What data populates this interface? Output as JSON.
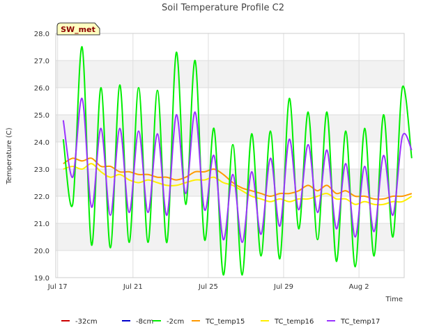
{
  "chart_data": {
    "type": "line",
    "title": "Soil Temperature Profile C2",
    "xlabel": "Time",
    "ylabel": "Temperature (C)",
    "station_label": "SW_met",
    "ylim": [
      19.0,
      28.0
    ],
    "yticks": [
      "19.0",
      "20.0",
      "21.0",
      "22.0",
      "23.0",
      "24.0",
      "25.0",
      "26.0",
      "27.0",
      "28.0"
    ],
    "xlim": [
      "Jul 17",
      "Aug 4"
    ],
    "xticks": [
      {
        "label": "Jul 17",
        "day": 0
      },
      {
        "label": "Jul 21",
        "day": 4
      },
      {
        "label": "Jul 25",
        "day": 8
      },
      {
        "label": "Jul 29",
        "day": 12
      },
      {
        "label": "Aug 2",
        "day": 16
      }
    ],
    "grid": true,
    "legend_position": "bottom",
    "series": [
      {
        "name": "-32cm",
        "color": "#cc0000",
        "values": []
      },
      {
        "name": "-8cm",
        "color": "#0000cc",
        "values": []
      },
      {
        "name": "-2cm",
        "color": "#00ee00",
        "day_start": 0.3,
        "day_step": 0.5,
        "values": [
          24.1,
          21.7,
          27.5,
          20.2,
          26.0,
          20.1,
          26.1,
          20.3,
          26.0,
          20.3,
          25.9,
          20.3,
          27.3,
          21.7,
          27.0,
          20.4,
          24.5,
          19.1,
          23.9,
          19.1,
          24.3,
          19.8,
          24.4,
          19.7,
          25.6,
          20.8,
          25.1,
          20.4,
          25.1,
          19.6,
          24.4,
          19.4,
          24.5,
          19.8,
          25.0,
          20.5,
          26.0,
          23.4
        ]
      },
      {
        "name": "TC_temp15",
        "color": "#ff9900",
        "day_start": 0.3,
        "day_step": 0.5,
        "values": [
          23.2,
          23.4,
          23.3,
          23.4,
          23.1,
          23.1,
          22.9,
          22.9,
          22.8,
          22.8,
          22.7,
          22.7,
          22.6,
          22.7,
          22.9,
          22.9,
          23.0,
          22.8,
          22.5,
          22.3,
          22.2,
          22.1,
          22.0,
          22.1,
          22.1,
          22.2,
          22.4,
          22.2,
          22.4,
          22.1,
          22.2,
          22.0,
          22.0,
          21.9,
          21.9,
          22.0,
          22.0,
          22.1
        ]
      },
      {
        "name": "TC_temp16",
        "color": "#ffee00",
        "day_start": 0.3,
        "day_step": 0.5,
        "values": [
          23.0,
          23.1,
          23.0,
          23.2,
          22.9,
          22.7,
          22.8,
          22.6,
          22.5,
          22.6,
          22.5,
          22.4,
          22.4,
          22.5,
          22.6,
          22.6,
          22.7,
          22.5,
          22.4,
          22.2,
          22.0,
          21.9,
          21.8,
          21.9,
          21.8,
          21.9,
          21.9,
          22.0,
          22.1,
          21.9,
          21.9,
          21.7,
          21.8,
          21.7,
          21.7,
          21.8,
          21.8,
          22.0
        ]
      },
      {
        "name": "TC_temp17",
        "color": "#9933ff",
        "day_start": 0.3,
        "day_step": 0.5,
        "values": [
          24.8,
          22.7,
          25.6,
          21.6,
          24.5,
          21.3,
          24.5,
          21.4,
          24.4,
          21.4,
          24.3,
          21.3,
          25.0,
          22.1,
          25.1,
          21.5,
          23.5,
          20.4,
          22.8,
          20.3,
          22.9,
          20.6,
          23.4,
          20.9,
          24.1,
          21.5,
          23.9,
          21.4,
          23.7,
          20.8,
          23.2,
          20.5,
          23.1,
          20.7,
          23.5,
          21.3,
          24.2,
          23.7
        ]
      }
    ]
  }
}
